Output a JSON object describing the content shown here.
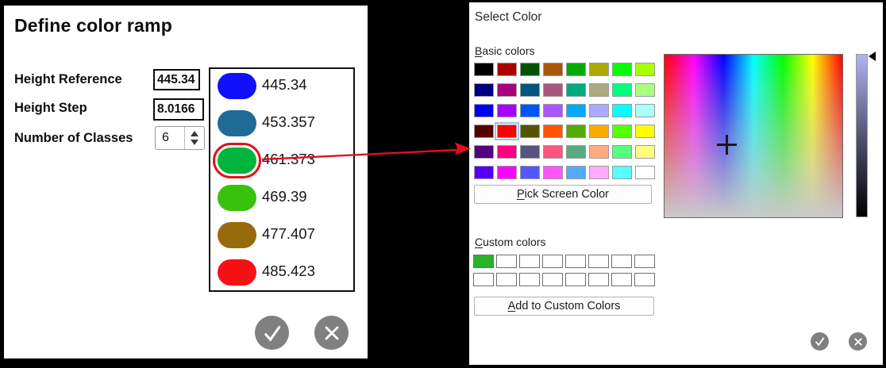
{
  "left_dialog": {
    "title": "Define color ramp",
    "height_reference_label": "Height Reference",
    "height_reference_value": "445.34",
    "height_step_label": "Height Step",
    "height_step_value": "8.0166",
    "num_classes_label": "Number of Classes",
    "num_classes_value": "6",
    "ramp": [
      {
        "value": "445.34",
        "color": "#1010fc"
      },
      {
        "value": "453.357",
        "color": "#1e6b96"
      },
      {
        "value": "461.373",
        "color": "#00b43c"
      },
      {
        "value": "469.39",
        "color": "#38c20c"
      },
      {
        "value": "477.407",
        "color": "#976b0a"
      },
      {
        "value": "485.423",
        "color": "#fb0f17"
      }
    ],
    "selected_ramp_index": 2
  },
  "right_dialog": {
    "title": "Select Color",
    "basic_colors_label": {
      "mn": "B",
      "rest": "asic colors"
    },
    "basic_colors": [
      "#000000",
      "#aa0000",
      "#005500",
      "#aa5500",
      "#00aa00",
      "#aaaa00",
      "#00ff00",
      "#aaff00",
      "#00007f",
      "#aa007f",
      "#00557f",
      "#aa557f",
      "#00aa7f",
      "#aaaa7f",
      "#00ff7f",
      "#aaff7f",
      "#0000ff",
      "#aa00ff",
      "#0055ff",
      "#aa55ff",
      "#00aaff",
      "#aaaaff",
      "#00ffff",
      "#aaffff",
      "#550000",
      "#ff0000",
      "#555500",
      "#ff5500",
      "#55aa00",
      "#ffaa00",
      "#55ff00",
      "#ffff00",
      "#55007f",
      "#ff007f",
      "#55557f",
      "#ff557f",
      "#55aa7f",
      "#ffaa7f",
      "#55ff7f",
      "#ffff7f",
      "#5500ff",
      "#ff00ff",
      "#5555ff",
      "#ff55ff",
      "#55aaff",
      "#ffaaff",
      "#55ffff",
      "#ffffff"
    ],
    "selected_basic_index": 25,
    "pick_screen_color_button": {
      "mn": "P",
      "rest": "ick Screen Color"
    },
    "custom_colors_label": {
      "mn": "C",
      "rest": "ustom colors"
    },
    "custom_colors": [
      "#28b428",
      "#ffffff",
      "#ffffff",
      "#ffffff",
      "#ffffff",
      "#ffffff",
      "#ffffff",
      "#ffffff",
      "#ffffff",
      "#ffffff",
      "#ffffff",
      "#ffffff",
      "#ffffff",
      "#ffffff",
      "#ffffff",
      "#ffffff"
    ],
    "add_custom_button": {
      "mn": "A",
      "rest": "dd to Custom Colors"
    }
  },
  "colors": {
    "selection_ring": "#e31219",
    "arrow": "#e3101c",
    "action_button_bg": "#808080",
    "basic_selected_outline": "#9dc3e3",
    "slider_top": "#b3b3f3"
  }
}
